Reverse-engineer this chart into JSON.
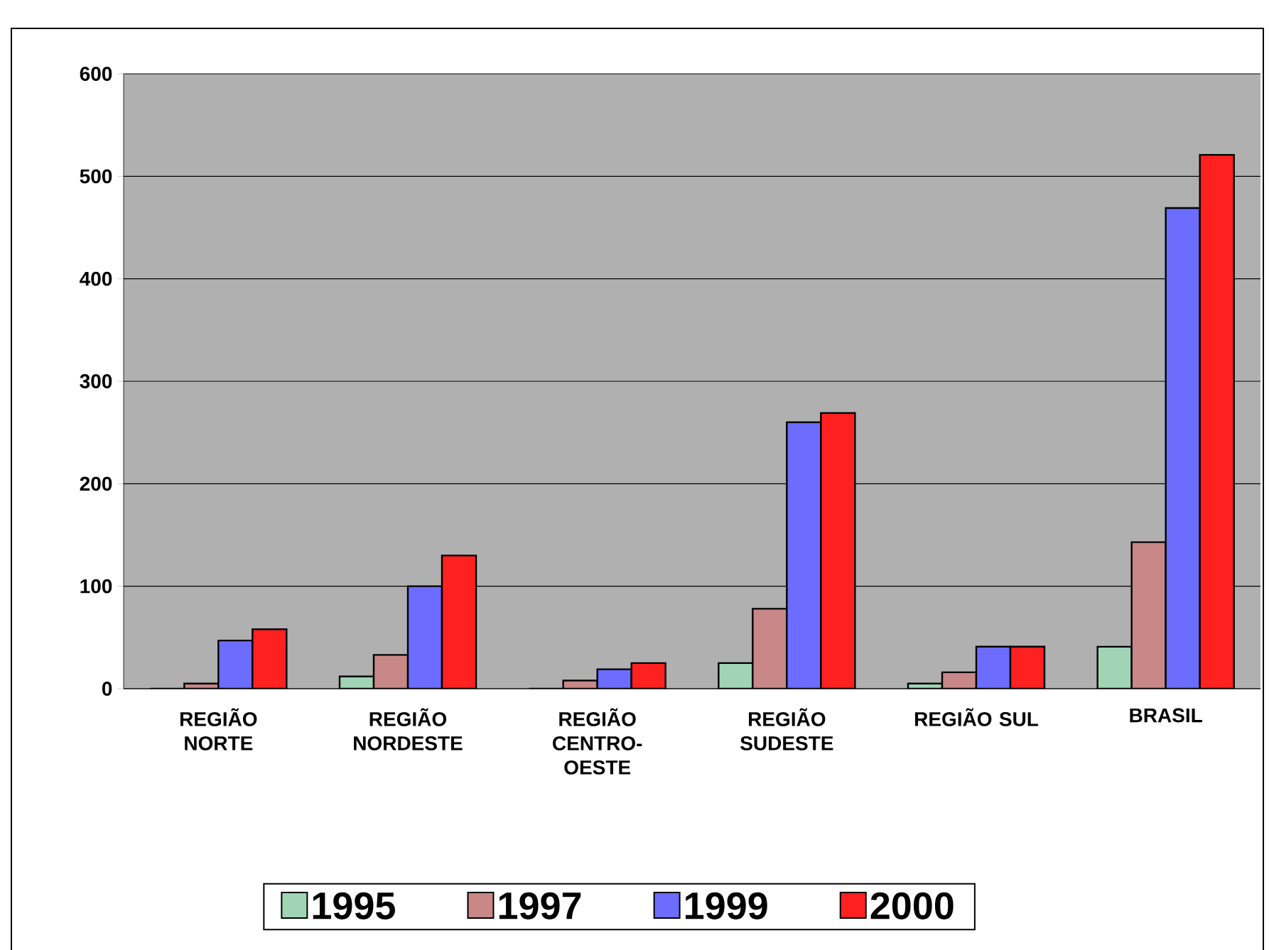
{
  "chart_data": {
    "type": "bar",
    "categories": [
      "REGIÃO NORTE",
      "REGIÃO NORDESTE",
      "REGIÃO CENTRO-OESTE",
      "REGIÃO SUDESTE",
      "REGIÃO SUL",
      "BRASIL"
    ],
    "series": [
      {
        "name": "1995",
        "color": "#a0d4b4",
        "values": [
          0,
          12,
          0,
          25,
          5,
          41
        ]
      },
      {
        "name": "1997",
        "color": "#c88888",
        "values": [
          5,
          33,
          8,
          78,
          16,
          143
        ]
      },
      {
        "name": "1999",
        "color": "#6c6cff",
        "values": [
          47,
          100,
          19,
          260,
          41,
          469
        ]
      },
      {
        "name": "2000",
        "color": "#ff2020",
        "values": [
          58,
          130,
          25,
          269,
          41,
          521
        ]
      }
    ],
    "ylim": [
      0,
      600
    ],
    "yticks": [
      0,
      100,
      200,
      300,
      400,
      500,
      600
    ],
    "grid": "y",
    "legend": "bottom"
  }
}
